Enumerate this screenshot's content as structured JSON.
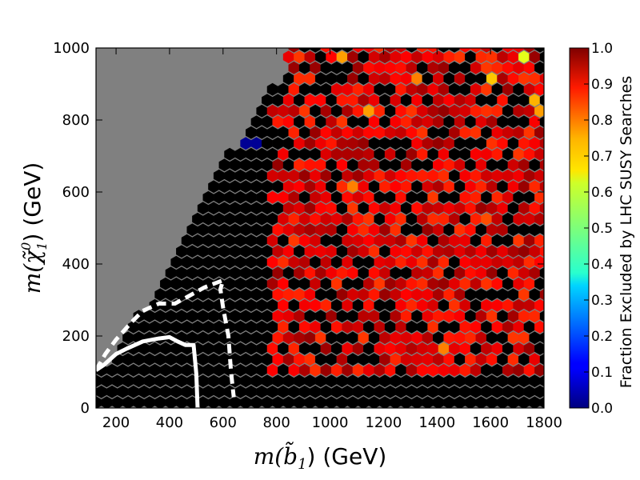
{
  "chart_data": {
    "type": "heatmap",
    "subtype": "hexbin",
    "xlabel": "m(b̃₁) (GeV)",
    "xlabel_math": "m(b̃",
    "xlabel_sub": "1",
    "xlabel_unit": ") (GeV)",
    "ylabel_math": "m(χ̃",
    "ylabel_sup": "0",
    "ylabel_sub": "1",
    "ylabel_unit": ") (GeV)",
    "xlim": [
      125,
      1800
    ],
    "ylim": [
      0,
      1000
    ],
    "x_ticks": [
      "200",
      "400",
      "600",
      "800",
      "1000",
      "1200",
      "1400",
      "1600",
      "1800"
    ],
    "y_ticks": [
      "0",
      "200",
      "400",
      "600",
      "800",
      "1000"
    ],
    "colorbar": {
      "label": "Fraction Excluded by LHC SUSY Searches",
      "range": [
        0.0,
        1.0
      ],
      "ticks": [
        "0.0",
        "0.1",
        "0.2",
        "0.3",
        "0.4",
        "0.5",
        "0.6",
        "0.7",
        "0.8",
        "0.9",
        "1.0"
      ],
      "colormap": "jet"
    },
    "background_color": "#808080",
    "region_boundary": [
      [
        125,
        100
      ],
      [
        200,
        160
      ],
      [
        320,
        300
      ],
      [
        420,
        420
      ],
      [
        520,
        560
      ],
      [
        620,
        700
      ],
      [
        720,
        820
      ],
      [
        800,
        900
      ],
      [
        860,
        1000
      ]
    ],
    "bin_rules": {
      "hex_width_gev": 40,
      "hex_height_gev": 30,
      "low_mass_fraction": 1.0,
      "high_mass_fraction_range": [
        0.82,
        0.98
      ],
      "bottom_band_fraction": 1.0,
      "outliers": [
        {
          "x": 705,
          "y": 735,
          "value": 0.02
        },
        {
          "x": 1715,
          "y": 975,
          "value": 0.6
        },
        {
          "x": 1620,
          "y": 915,
          "value": 0.68
        },
        {
          "x": 1040,
          "y": 975,
          "value": 0.72
        },
        {
          "x": 1150,
          "y": 825,
          "value": 0.72
        },
        {
          "x": 1330,
          "y": 915,
          "value": 0.75
        },
        {
          "x": 1080,
          "y": 615,
          "value": 0.75
        },
        {
          "x": 1410,
          "y": 175,
          "value": 0.75
        },
        {
          "x": 1580,
          "y": 525,
          "value": 0.8
        },
        {
          "x": 1790,
          "y": 825,
          "value": 0.72
        },
        {
          "x": 1750,
          "y": 855,
          "value": 0.7
        }
      ]
    },
    "curves": [
      {
        "style": "solid",
        "color": "#ffffff",
        "points": [
          [
            125,
            105
          ],
          [
            155,
            120
          ],
          [
            200,
            150
          ],
          [
            240,
            165
          ],
          [
            300,
            185
          ],
          [
            360,
            193
          ],
          [
            400,
            197
          ],
          [
            430,
            185
          ],
          [
            460,
            175
          ],
          [
            490,
            175
          ],
          [
            500,
            95
          ],
          [
            505,
            0
          ]
        ]
      },
      {
        "style": "dashed",
        "color": "#ffffff",
        "points": [
          [
            125,
            105
          ],
          [
            160,
            150
          ],
          [
            200,
            190
          ],
          [
            260,
            240
          ],
          [
            300,
            270
          ],
          [
            360,
            290
          ],
          [
            420,
            290
          ],
          [
            470,
            310
          ],
          [
            530,
            335
          ],
          [
            600,
            355
          ],
          [
            590,
            330
          ],
          [
            600,
            280
          ],
          [
            620,
            200
          ],
          [
            630,
            100
          ],
          [
            640,
            30
          ]
        ]
      }
    ]
  }
}
